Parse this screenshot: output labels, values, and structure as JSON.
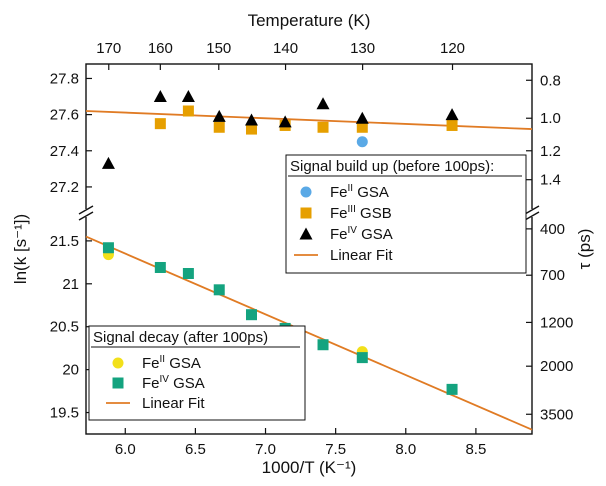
{
  "chart_data": {
    "type": "scatter",
    "axes": {
      "x_bottom": {
        "label": "1000/T (K⁻¹)",
        "range": [
          5.72,
          8.9
        ],
        "ticks": [
          "6.0",
          "6.5",
          "7.0",
          "7.5",
          "8.0",
          "8.5"
        ],
        "tick_values": [
          6.0,
          6.5,
          7.0,
          7.5,
          8.0,
          8.5
        ]
      },
      "x_top": {
        "label": "Temperature (K)",
        "ticks": [
          "170",
          "160",
          "150",
          "140",
          "130",
          "120"
        ],
        "tick_values_K": [
          170,
          160,
          150,
          140,
          130,
          120
        ]
      },
      "y_left": {
        "label": "ln(k [s⁻¹])",
        "broken": true,
        "upper_range": [
          27.1,
          27.88
        ],
        "upper_ticks": [
          "27.8",
          "27.6",
          "27.4",
          "27.2"
        ],
        "upper_tick_values": [
          27.8,
          27.6,
          27.4,
          27.2
        ],
        "lower_range": [
          19.25,
          21.72
        ],
        "lower_ticks": [
          "21.5",
          "21",
          "20.5",
          "20",
          "19.5"
        ],
        "lower_tick_values": [
          21.5,
          21.0,
          20.5,
          20.0,
          19.5
        ]
      },
      "y_right": {
        "label": "τ (ps)",
        "upper_ticks": [
          "0.8",
          "1.0",
          "1.2",
          "1.4"
        ],
        "lower_ticks": [
          "400",
          "700",
          "1200",
          "2000",
          "3500"
        ]
      }
    },
    "grid": false,
    "legends": [
      {
        "title": "Signal build up (before 100ps):",
        "placement": "upper panel, lower-right",
        "entries": [
          {
            "label": "GSA",
            "prefix": "Fe",
            "superscript": "II",
            "marker": "circle",
            "color": "#5aa9e6"
          },
          {
            "label": "GSB",
            "prefix": "Fe",
            "superscript": "III",
            "marker": "square",
            "color": "#e69f00"
          },
          {
            "label": "GSA",
            "prefix": "Fe",
            "superscript": "IV",
            "marker": "triangle",
            "color": "#000000"
          },
          {
            "label": "Linear Fit",
            "marker": "line",
            "color": "#e07b24"
          }
        ]
      },
      {
        "title": "Signal decay (after 100ps)",
        "placement": "lower panel, lower-left",
        "entries": [
          {
            "label": "GSA",
            "prefix": "Fe",
            "superscript": "II",
            "marker": "circle",
            "color": "#f2e01a"
          },
          {
            "label": "GSA",
            "prefix": "Fe",
            "superscript": "IV",
            "marker": "square",
            "color": "#14a37f"
          },
          {
            "label": "Linear Fit",
            "marker": "line",
            "color": "#e07b24"
          }
        ]
      }
    ],
    "panels": [
      {
        "name": "upper",
        "series": [
          {
            "marker": "circle",
            "color": "#5aa9e6",
            "points": [
              [
                7.69,
                27.45
              ]
            ]
          },
          {
            "marker": "square",
            "color": "#e69f00",
            "points": [
              [
                6.25,
                27.55
              ],
              [
                6.45,
                27.62
              ],
              [
                6.67,
                27.53
              ],
              [
                6.9,
                27.52
              ],
              [
                7.14,
                27.54
              ],
              [
                7.41,
                27.53
              ],
              [
                7.69,
                27.53
              ],
              [
                8.33,
                27.54
              ]
            ]
          },
          {
            "marker": "triangle",
            "color": "#000000",
            "points": [
              [
                5.88,
                27.33
              ],
              [
                6.25,
                27.7
              ],
              [
                6.45,
                27.7
              ],
              [
                6.67,
                27.59
              ],
              [
                6.9,
                27.57
              ],
              [
                7.14,
                27.56
              ],
              [
                7.41,
                27.66
              ],
              [
                7.69,
                27.58
              ],
              [
                8.33,
                27.6
              ]
            ]
          },
          {
            "marker": "line",
            "color": "#e07b24",
            "points": [
              [
                5.72,
                27.62
              ],
              [
                8.9,
                27.52
              ]
            ]
          }
        ]
      },
      {
        "name": "lower",
        "series": [
          {
            "marker": "circle",
            "color": "#f2e01a",
            "points": [
              [
                5.88,
                21.34
              ],
              [
                7.69,
                20.21
              ]
            ]
          },
          {
            "marker": "square",
            "color": "#14a37f",
            "points": [
              [
                5.88,
                21.42
              ],
              [
                6.25,
                21.19
              ],
              [
                6.45,
                21.12
              ],
              [
                6.67,
                20.93
              ],
              [
                6.9,
                20.64
              ],
              [
                7.14,
                20.48
              ],
              [
                7.41,
                20.29
              ],
              [
                7.69,
                20.14
              ],
              [
                8.33,
                19.77
              ]
            ]
          },
          {
            "marker": "line",
            "color": "#e07b24",
            "points": [
              [
                5.72,
                21.55
              ],
              [
                8.9,
                19.3
              ]
            ]
          }
        ]
      }
    ]
  }
}
